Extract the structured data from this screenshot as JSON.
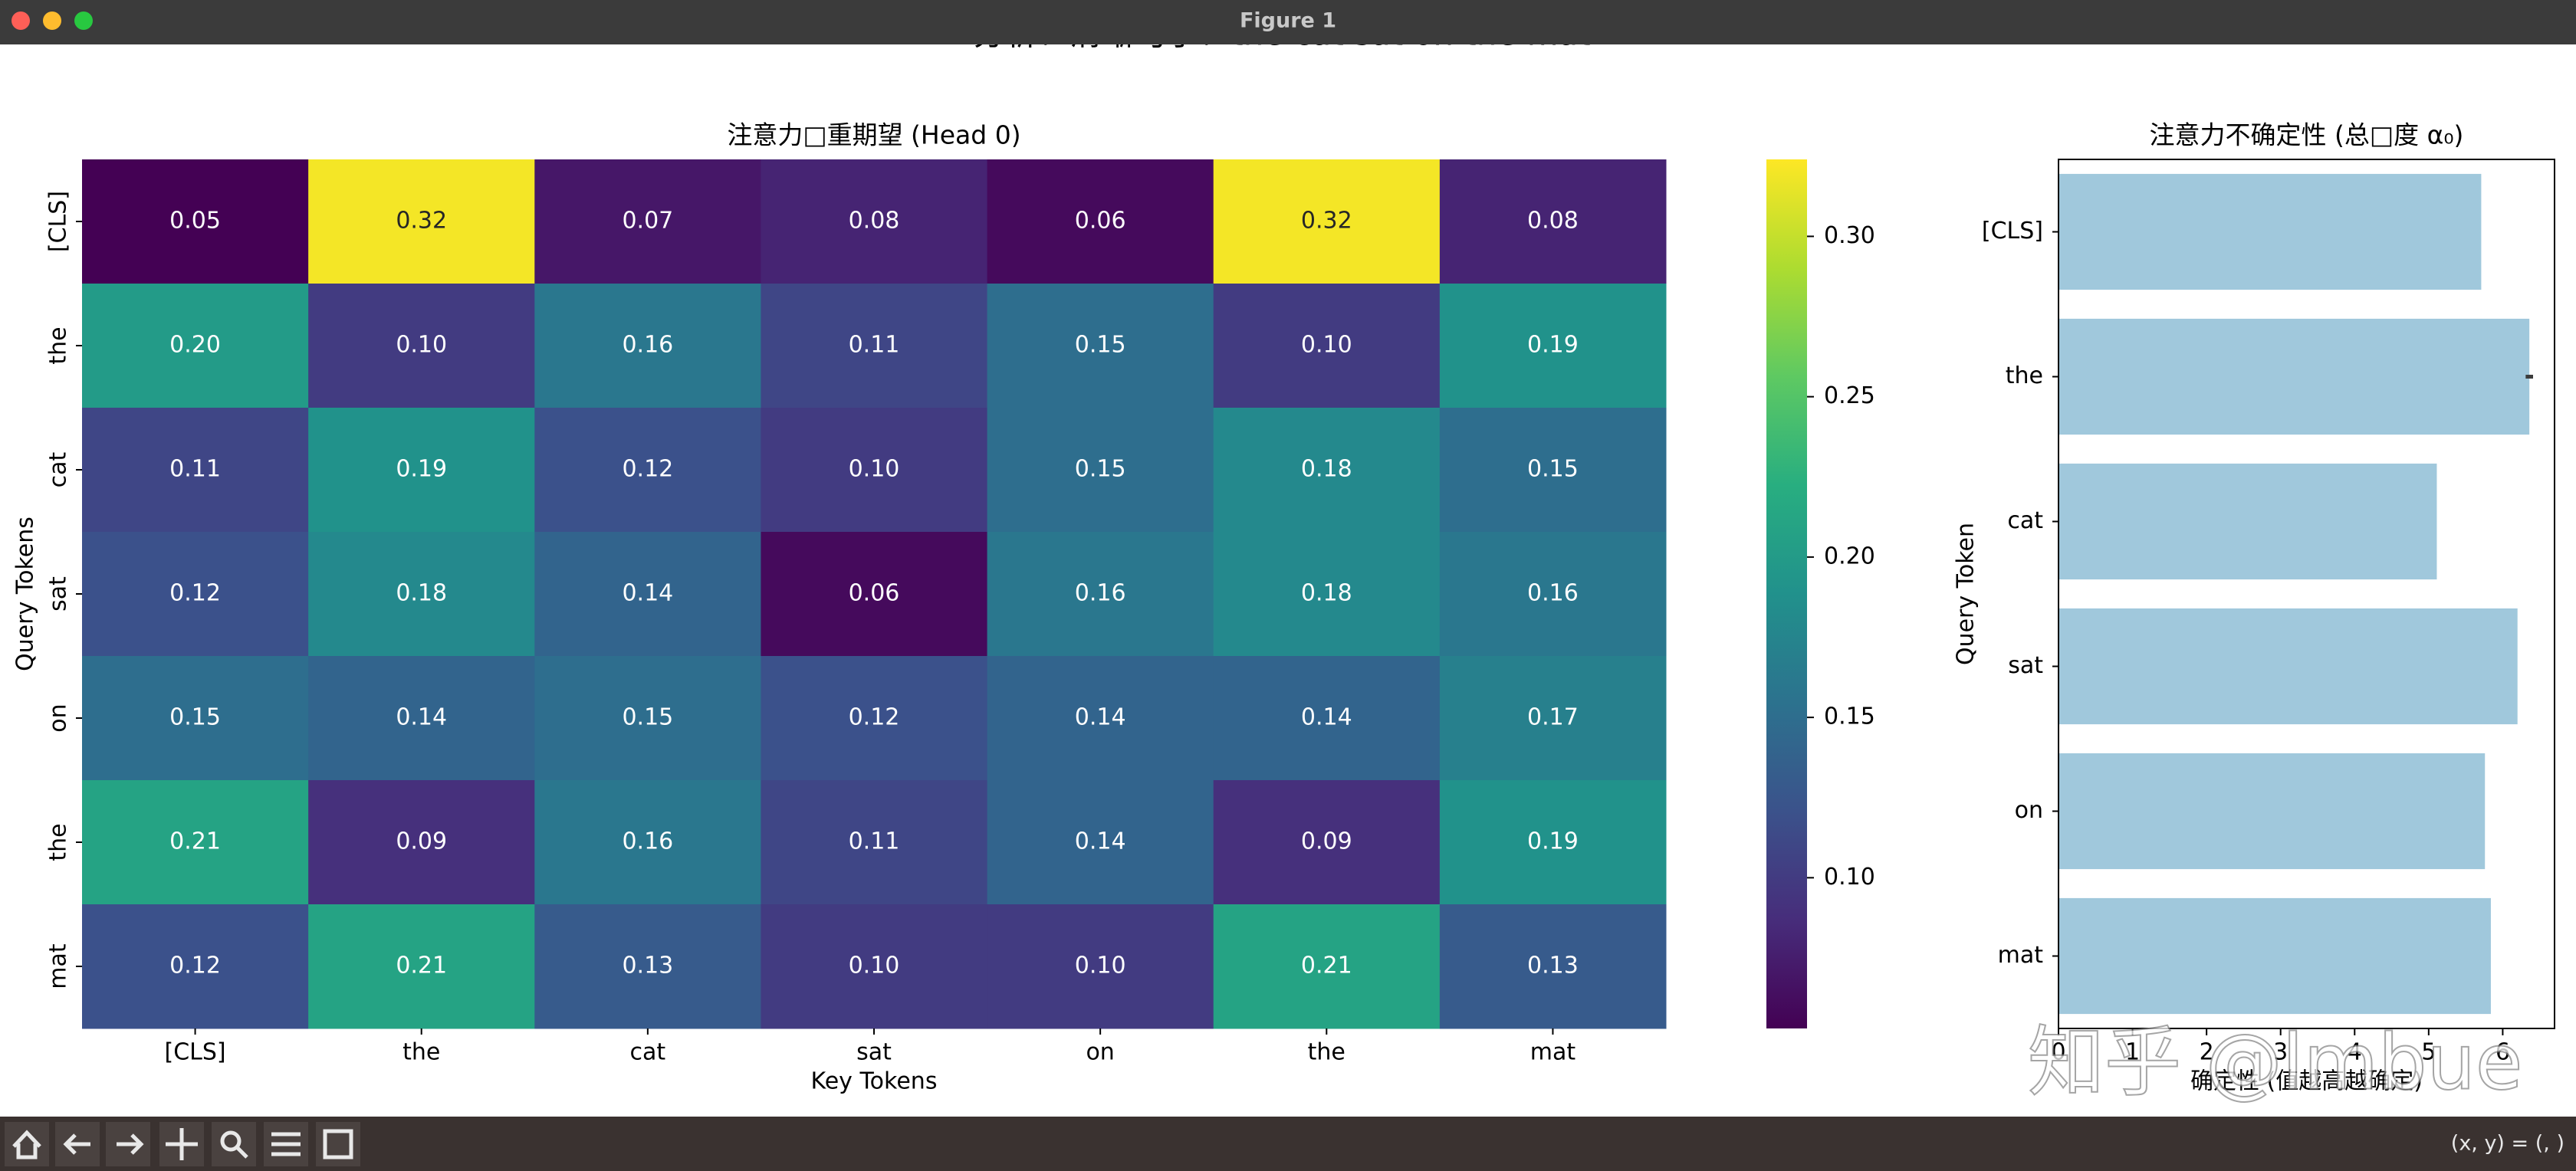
{
  "window": {
    "title": "Figure 1",
    "coords": "(x, y) = (, )"
  },
  "suptitle": "分析：清晰句子：the cat sat on the mat",
  "watermark": "知乎 @lmbue",
  "chart_data": [
    {
      "type": "heatmap",
      "title": "注意力□重期望 (Head 0)",
      "xlabel": "Key Tokens",
      "ylabel": "Query Tokens",
      "x_categories": [
        "[CLS]",
        "the",
        "cat",
        "sat",
        "on",
        "the",
        "mat"
      ],
      "y_categories": [
        "[CLS]",
        "the",
        "cat",
        "sat",
        "on",
        "the",
        "mat"
      ],
      "colormap": "viridis",
      "values": [
        [
          0.05,
          0.32,
          0.07,
          0.08,
          0.06,
          0.32,
          0.08
        ],
        [
          0.2,
          0.1,
          0.16,
          0.11,
          0.15,
          0.1,
          0.19
        ],
        [
          0.11,
          0.19,
          0.12,
          0.1,
          0.15,
          0.18,
          0.15
        ],
        [
          0.12,
          0.18,
          0.14,
          0.06,
          0.16,
          0.18,
          0.16
        ],
        [
          0.15,
          0.14,
          0.15,
          0.12,
          0.14,
          0.14,
          0.17
        ],
        [
          0.21,
          0.09,
          0.16,
          0.11,
          0.14,
          0.09,
          0.19
        ],
        [
          0.12,
          0.21,
          0.13,
          0.1,
          0.1,
          0.21,
          0.13
        ]
      ],
      "value_labels": [
        [
          "0.05",
          "0.32",
          "0.07",
          "0.08",
          "0.06",
          "0.32",
          "0.08"
        ],
        [
          "0.20",
          "0.10",
          "0.16",
          "0.11",
          "0.15",
          "0.10",
          "0.19"
        ],
        [
          "0.11",
          "0.19",
          "0.12",
          "0.10",
          "0.15",
          "0.18",
          "0.15"
        ],
        [
          "0.12",
          "0.18",
          "0.14",
          "0.06",
          "0.16",
          "0.18",
          "0.16"
        ],
        [
          "0.15",
          "0.14",
          "0.15",
          "0.12",
          "0.14",
          "0.14",
          "0.17"
        ],
        [
          "0.21",
          "0.09",
          "0.16",
          "0.11",
          "0.14",
          "0.09",
          "0.19"
        ],
        [
          "0.12",
          "0.21",
          "0.13",
          "0.10",
          "0.10",
          "0.21",
          "0.13"
        ]
      ],
      "clim": [
        0.053,
        0.324
      ],
      "cbar_ticks": [
        {
          "value": 0.1,
          "label": "0.10"
        },
        {
          "value": 0.15,
          "label": "0.15"
        },
        {
          "value": 0.2,
          "label": "0.20"
        },
        {
          "value": 0.25,
          "label": "0.25"
        },
        {
          "value": 0.3,
          "label": "0.30"
        }
      ]
    },
    {
      "type": "bar",
      "orientation": "horizontal",
      "title": "注意力不确定性 (总□度 α₀)",
      "xlabel": "确定性 (值越高越确定)",
      "ylabel": "Query Token",
      "categories": [
        "[CLS]",
        "the",
        "cat",
        "sat",
        "on",
        "mat"
      ],
      "values": [
        5.71,
        6.36,
        5.11,
        6.2,
        5.76,
        5.84
      ],
      "errors": [
        null,
        0.05,
        null,
        null,
        null,
        null
      ],
      "color": "#a0c8dc",
      "xlim": [
        0,
        6.7
      ],
      "xticks": [
        0,
        1,
        2,
        3,
        4,
        5,
        6
      ]
    }
  ]
}
